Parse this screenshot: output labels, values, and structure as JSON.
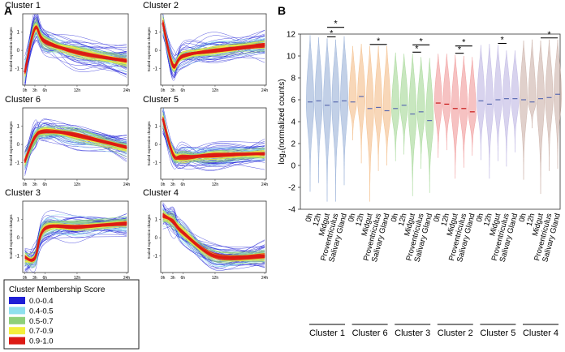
{
  "panel_labels": {
    "a": "A",
    "b": "B"
  },
  "legend": {
    "title": "Cluster Membership Score",
    "entries": [
      {
        "label": "0.0-0.4",
        "color": "#1f1fd6"
      },
      {
        "label": "0.4-0.5",
        "color": "#8fe0ee"
      },
      {
        "label": "0.5-0.7",
        "color": "#8fd07a"
      },
      {
        "label": "0.7-0.9",
        "color": "#f3ef3c"
      },
      {
        "label": "0.9-1.0",
        "color": "#dd1a14"
      }
    ]
  },
  "chart_data": [
    {
      "type": "line",
      "title": "Cluster 1",
      "x": [
        "0h",
        "3h",
        "6h",
        "12h",
        "24h"
      ],
      "series": [
        {
          "name": "core (0.9-1.0)",
          "values": [
            -1.2,
            1.2,
            0.5,
            -0.1,
            -0.6
          ]
        }
      ],
      "ylabel": "Scaled expression changes",
      "yticks": [
        "1",
        "0",
        "-1"
      ],
      "ylim": [
        -1.9,
        2.0
      ]
    },
    {
      "type": "line",
      "title": "Cluster 2",
      "x": [
        "0h",
        "3h",
        "6h",
        "12h",
        "24h"
      ],
      "series": [
        {
          "name": "core (0.9-1.0)",
          "values": [
            1.5,
            -0.8,
            -0.3,
            0.0,
            0.3
          ]
        }
      ],
      "ylabel": "Scaled expression changes",
      "yticks": [
        "1",
        "0",
        "-1"
      ],
      "ylim": [
        -1.9,
        2.0
      ]
    },
    {
      "type": "line",
      "title": "Cluster 6",
      "x": [
        "0h",
        "3h",
        "6h",
        "12h",
        "24h"
      ],
      "series": [
        {
          "name": "core (0.9-1.0)",
          "values": [
            -0.9,
            0.4,
            0.7,
            0.5,
            -0.2
          ]
        }
      ],
      "ylabel": "Scaled expression changes",
      "yticks": [
        "1",
        "0",
        "-1"
      ],
      "ylim": [
        -1.9,
        2.0
      ]
    },
    {
      "type": "line",
      "title": "Cluster 5",
      "x": [
        "0h",
        "3h",
        "6h",
        "12h",
        "24h"
      ],
      "series": [
        {
          "name": "core (0.9-1.0)",
          "values": [
            1.4,
            -0.5,
            -0.7,
            -0.6,
            -0.5
          ]
        }
      ],
      "ylabel": "Scaled expression changes",
      "yticks": [
        "1",
        "0",
        "-1"
      ],
      "ylim": [
        -1.9,
        2.0
      ]
    },
    {
      "type": "line",
      "title": "Cluster 3",
      "x": [
        "0h",
        "3h",
        "6h",
        "12h",
        "24h"
      ],
      "series": [
        {
          "name": "core (0.9-1.0)",
          "values": [
            -1.1,
            -1.1,
            0.5,
            0.6,
            0.8
          ]
        }
      ],
      "ylabel": "Scaled expression changes",
      "yticks": [
        "1",
        "0",
        "-1"
      ],
      "ylim": [
        -1.9,
        2.0
      ]
    },
    {
      "type": "line",
      "title": "Cluster 4",
      "x": [
        "0h",
        "3h",
        "6h",
        "12h",
        "24h"
      ],
      "series": [
        {
          "name": "core (0.9-1.0)",
          "values": [
            1.2,
            0.9,
            0.3,
            -1.0,
            -1.0
          ]
        }
      ],
      "ylabel": "Scaled expression changes",
      "yticks": [
        "1",
        "0",
        "-1"
      ],
      "ylim": [
        -1.9,
        2.0
      ]
    },
    {
      "type": "violin",
      "ylabel": "log₂(normalized counts)",
      "ylim": [
        -4,
        12
      ],
      "yticks": [
        "-4",
        "-2",
        "0",
        "2",
        "4",
        "6",
        "8",
        "10",
        "12"
      ],
      "conditions": [
        "0h",
        "12h",
        "Midgut",
        "Proventriculus",
        "Salivary Gland"
      ],
      "groups": [
        {
          "cluster": "Cluster 1",
          "color": "#8fa9d4",
          "medians": [
            5.8,
            5.9,
            5.5,
            5.8,
            5.9
          ],
          "mins": [
            -2.4,
            -1.6,
            -3.3,
            -3.3,
            -1.8
          ],
          "maxs": [
            11.9,
            11.7,
            11.6,
            11.5,
            11.8
          ],
          "significance": [
            "*",
            "*"
          ],
          "brackets": [
            [
              2,
              3
            ],
            [
              2,
              4
            ]
          ]
        },
        {
          "cluster": "Cluster 6",
          "color": "#f3b77d",
          "medians": [
            5.8,
            6.3,
            5.2,
            5.3,
            5.0
          ],
          "mins": [
            2.3,
            0.2,
            -3.3,
            -0.5,
            0.0
          ],
          "maxs": [
            10.9,
            11.1,
            10.9,
            10.9,
            10.9
          ],
          "significance": [
            "*"
          ],
          "brackets": [
            [
              2,
              4
            ]
          ]
        },
        {
          "cluster": "Cluster 3",
          "color": "#9bd38b",
          "medians": [
            5.2,
            5.5,
            4.7,
            4.9,
            4.1
          ],
          "mins": [
            0.4,
            1.0,
            -2.8,
            -0.3,
            -2.5
          ],
          "maxs": [
            10.3,
            10.2,
            10.2,
            9.9,
            9.8
          ],
          "significance": [
            "*",
            "*"
          ],
          "brackets": [
            [
              2,
              3
            ],
            [
              2,
              4
            ]
          ]
        },
        {
          "cluster": "Cluster 2",
          "color": "#ef8f8f",
          "medians": [
            5.7,
            5.6,
            5.2,
            5.2,
            4.9
          ],
          "mins": [
            0.7,
            1.4,
            -1.2,
            -0.2,
            0.9
          ],
          "maxs": [
            10.2,
            10.2,
            10.1,
            10.0,
            9.9
          ],
          "significance": [
            "*",
            "*"
          ],
          "brackets": [
            [
              2,
              3
            ],
            [
              2,
              4
            ]
          ]
        },
        {
          "cluster": "Cluster 5",
          "color": "#b8aee0",
          "medians": [
            5.9,
            5.6,
            6.0,
            6.1,
            6.1
          ],
          "mins": [
            0.5,
            -1.2,
            0.4,
            -0.1,
            1.2
          ],
          "maxs": [
            11.0,
            11.1,
            11.0,
            10.5,
            10.5
          ],
          "significance": [
            "*"
          ],
          "brackets": [
            [
              2,
              3
            ]
          ]
        },
        {
          "cluster": "Cluster 4",
          "color": "#c7a9a0",
          "medians": [
            6.0,
            5.8,
            6.1,
            6.2,
            6.5
          ],
          "mins": [
            -1.3,
            3.4,
            -2.6,
            -0.5,
            -0.3
          ],
          "maxs": [
            11.4,
            11.5,
            11.4,
            11.5,
            11.5
          ],
          "significance": [
            "*"
          ],
          "brackets": [
            [
              2,
              4
            ]
          ]
        }
      ]
    }
  ]
}
